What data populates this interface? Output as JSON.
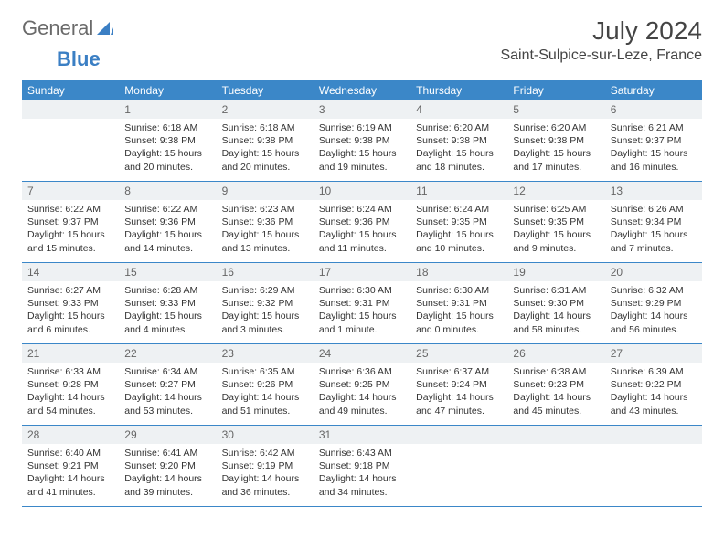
{
  "logo": {
    "gray": "General",
    "blue": "Blue"
  },
  "title": "July 2024",
  "location": "Saint-Sulpice-sur-Leze, France",
  "colors": {
    "header_bar": "#3b87c8",
    "daynum_bg": "#eef1f3",
    "rule": "#3b87c8",
    "logo_gray": "#6a6a6a",
    "logo_blue": "#3b7fc4"
  },
  "weekdays": [
    "Sunday",
    "Monday",
    "Tuesday",
    "Wednesday",
    "Thursday",
    "Friday",
    "Saturday"
  ],
  "weeks": [
    [
      {
        "n": "",
        "sr": "",
        "ss": "",
        "dl": ""
      },
      {
        "n": "1",
        "sr": "Sunrise: 6:18 AM",
        "ss": "Sunset: 9:38 PM",
        "dl": "Daylight: 15 hours and 20 minutes."
      },
      {
        "n": "2",
        "sr": "Sunrise: 6:18 AM",
        "ss": "Sunset: 9:38 PM",
        "dl": "Daylight: 15 hours and 20 minutes."
      },
      {
        "n": "3",
        "sr": "Sunrise: 6:19 AM",
        "ss": "Sunset: 9:38 PM",
        "dl": "Daylight: 15 hours and 19 minutes."
      },
      {
        "n": "4",
        "sr": "Sunrise: 6:20 AM",
        "ss": "Sunset: 9:38 PM",
        "dl": "Daylight: 15 hours and 18 minutes."
      },
      {
        "n": "5",
        "sr": "Sunrise: 6:20 AM",
        "ss": "Sunset: 9:38 PM",
        "dl": "Daylight: 15 hours and 17 minutes."
      },
      {
        "n": "6",
        "sr": "Sunrise: 6:21 AM",
        "ss": "Sunset: 9:37 PM",
        "dl": "Daylight: 15 hours and 16 minutes."
      }
    ],
    [
      {
        "n": "7",
        "sr": "Sunrise: 6:22 AM",
        "ss": "Sunset: 9:37 PM",
        "dl": "Daylight: 15 hours and 15 minutes."
      },
      {
        "n": "8",
        "sr": "Sunrise: 6:22 AM",
        "ss": "Sunset: 9:36 PM",
        "dl": "Daylight: 15 hours and 14 minutes."
      },
      {
        "n": "9",
        "sr": "Sunrise: 6:23 AM",
        "ss": "Sunset: 9:36 PM",
        "dl": "Daylight: 15 hours and 13 minutes."
      },
      {
        "n": "10",
        "sr": "Sunrise: 6:24 AM",
        "ss": "Sunset: 9:36 PM",
        "dl": "Daylight: 15 hours and 11 minutes."
      },
      {
        "n": "11",
        "sr": "Sunrise: 6:24 AM",
        "ss": "Sunset: 9:35 PM",
        "dl": "Daylight: 15 hours and 10 minutes."
      },
      {
        "n": "12",
        "sr": "Sunrise: 6:25 AM",
        "ss": "Sunset: 9:35 PM",
        "dl": "Daylight: 15 hours and 9 minutes."
      },
      {
        "n": "13",
        "sr": "Sunrise: 6:26 AM",
        "ss": "Sunset: 9:34 PM",
        "dl": "Daylight: 15 hours and 7 minutes."
      }
    ],
    [
      {
        "n": "14",
        "sr": "Sunrise: 6:27 AM",
        "ss": "Sunset: 9:33 PM",
        "dl": "Daylight: 15 hours and 6 minutes."
      },
      {
        "n": "15",
        "sr": "Sunrise: 6:28 AM",
        "ss": "Sunset: 9:33 PM",
        "dl": "Daylight: 15 hours and 4 minutes."
      },
      {
        "n": "16",
        "sr": "Sunrise: 6:29 AM",
        "ss": "Sunset: 9:32 PM",
        "dl": "Daylight: 15 hours and 3 minutes."
      },
      {
        "n": "17",
        "sr": "Sunrise: 6:30 AM",
        "ss": "Sunset: 9:31 PM",
        "dl": "Daylight: 15 hours and 1 minute."
      },
      {
        "n": "18",
        "sr": "Sunrise: 6:30 AM",
        "ss": "Sunset: 9:31 PM",
        "dl": "Daylight: 15 hours and 0 minutes."
      },
      {
        "n": "19",
        "sr": "Sunrise: 6:31 AM",
        "ss": "Sunset: 9:30 PM",
        "dl": "Daylight: 14 hours and 58 minutes."
      },
      {
        "n": "20",
        "sr": "Sunrise: 6:32 AM",
        "ss": "Sunset: 9:29 PM",
        "dl": "Daylight: 14 hours and 56 minutes."
      }
    ],
    [
      {
        "n": "21",
        "sr": "Sunrise: 6:33 AM",
        "ss": "Sunset: 9:28 PM",
        "dl": "Daylight: 14 hours and 54 minutes."
      },
      {
        "n": "22",
        "sr": "Sunrise: 6:34 AM",
        "ss": "Sunset: 9:27 PM",
        "dl": "Daylight: 14 hours and 53 minutes."
      },
      {
        "n": "23",
        "sr": "Sunrise: 6:35 AM",
        "ss": "Sunset: 9:26 PM",
        "dl": "Daylight: 14 hours and 51 minutes."
      },
      {
        "n": "24",
        "sr": "Sunrise: 6:36 AM",
        "ss": "Sunset: 9:25 PM",
        "dl": "Daylight: 14 hours and 49 minutes."
      },
      {
        "n": "25",
        "sr": "Sunrise: 6:37 AM",
        "ss": "Sunset: 9:24 PM",
        "dl": "Daylight: 14 hours and 47 minutes."
      },
      {
        "n": "26",
        "sr": "Sunrise: 6:38 AM",
        "ss": "Sunset: 9:23 PM",
        "dl": "Daylight: 14 hours and 45 minutes."
      },
      {
        "n": "27",
        "sr": "Sunrise: 6:39 AM",
        "ss": "Sunset: 9:22 PM",
        "dl": "Daylight: 14 hours and 43 minutes."
      }
    ],
    [
      {
        "n": "28",
        "sr": "Sunrise: 6:40 AM",
        "ss": "Sunset: 9:21 PM",
        "dl": "Daylight: 14 hours and 41 minutes."
      },
      {
        "n": "29",
        "sr": "Sunrise: 6:41 AM",
        "ss": "Sunset: 9:20 PM",
        "dl": "Daylight: 14 hours and 39 minutes."
      },
      {
        "n": "30",
        "sr": "Sunrise: 6:42 AM",
        "ss": "Sunset: 9:19 PM",
        "dl": "Daylight: 14 hours and 36 minutes."
      },
      {
        "n": "31",
        "sr": "Sunrise: 6:43 AM",
        "ss": "Sunset: 9:18 PM",
        "dl": "Daylight: 14 hours and 34 minutes."
      },
      {
        "n": "",
        "sr": "",
        "ss": "",
        "dl": ""
      },
      {
        "n": "",
        "sr": "",
        "ss": "",
        "dl": ""
      },
      {
        "n": "",
        "sr": "",
        "ss": "",
        "dl": ""
      }
    ]
  ]
}
